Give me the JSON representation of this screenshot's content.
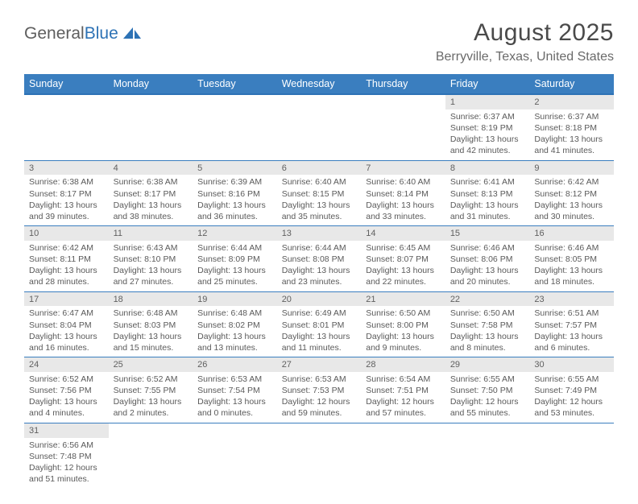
{
  "logo": {
    "text1": "General",
    "text2": "Blue"
  },
  "title": {
    "month": "August 2025",
    "location": "Berryville, Texas, United States"
  },
  "colors": {
    "header_bg": "#3a7ebf",
    "header_border": "#2d72b5",
    "daynum_bg": "#e8e8e8",
    "row_border": "#3a7ebf",
    "text": "#5a5a5a",
    "logo_gray": "#5e5e5e",
    "logo_blue": "#2d72b5"
  },
  "weekdays": [
    "Sunday",
    "Monday",
    "Tuesday",
    "Wednesday",
    "Thursday",
    "Friday",
    "Saturday"
  ],
  "weeks": [
    [
      null,
      null,
      null,
      null,
      null,
      {
        "n": "1",
        "sunrise": "6:37 AM",
        "sunset": "8:19 PM",
        "day_h": "13",
        "day_m": "42"
      },
      {
        "n": "2",
        "sunrise": "6:37 AM",
        "sunset": "8:18 PM",
        "day_h": "13",
        "day_m": "41"
      }
    ],
    [
      {
        "n": "3",
        "sunrise": "6:38 AM",
        "sunset": "8:17 PM",
        "day_h": "13",
        "day_m": "39"
      },
      {
        "n": "4",
        "sunrise": "6:38 AM",
        "sunset": "8:17 PM",
        "day_h": "13",
        "day_m": "38"
      },
      {
        "n": "5",
        "sunrise": "6:39 AM",
        "sunset": "8:16 PM",
        "day_h": "13",
        "day_m": "36"
      },
      {
        "n": "6",
        "sunrise": "6:40 AM",
        "sunset": "8:15 PM",
        "day_h": "13",
        "day_m": "35"
      },
      {
        "n": "7",
        "sunrise": "6:40 AM",
        "sunset": "8:14 PM",
        "day_h": "13",
        "day_m": "33"
      },
      {
        "n": "8",
        "sunrise": "6:41 AM",
        "sunset": "8:13 PM",
        "day_h": "13",
        "day_m": "31"
      },
      {
        "n": "9",
        "sunrise": "6:42 AM",
        "sunset": "8:12 PM",
        "day_h": "13",
        "day_m": "30"
      }
    ],
    [
      {
        "n": "10",
        "sunrise": "6:42 AM",
        "sunset": "8:11 PM",
        "day_h": "13",
        "day_m": "28"
      },
      {
        "n": "11",
        "sunrise": "6:43 AM",
        "sunset": "8:10 PM",
        "day_h": "13",
        "day_m": "27"
      },
      {
        "n": "12",
        "sunrise": "6:44 AM",
        "sunset": "8:09 PM",
        "day_h": "13",
        "day_m": "25"
      },
      {
        "n": "13",
        "sunrise": "6:44 AM",
        "sunset": "8:08 PM",
        "day_h": "13",
        "day_m": "23"
      },
      {
        "n": "14",
        "sunrise": "6:45 AM",
        "sunset": "8:07 PM",
        "day_h": "13",
        "day_m": "22"
      },
      {
        "n": "15",
        "sunrise": "6:46 AM",
        "sunset": "8:06 PM",
        "day_h": "13",
        "day_m": "20"
      },
      {
        "n": "16",
        "sunrise": "6:46 AM",
        "sunset": "8:05 PM",
        "day_h": "13",
        "day_m": "18"
      }
    ],
    [
      {
        "n": "17",
        "sunrise": "6:47 AM",
        "sunset": "8:04 PM",
        "day_h": "13",
        "day_m": "16"
      },
      {
        "n": "18",
        "sunrise": "6:48 AM",
        "sunset": "8:03 PM",
        "day_h": "13",
        "day_m": "15"
      },
      {
        "n": "19",
        "sunrise": "6:48 AM",
        "sunset": "8:02 PM",
        "day_h": "13",
        "day_m": "13"
      },
      {
        "n": "20",
        "sunrise": "6:49 AM",
        "sunset": "8:01 PM",
        "day_h": "13",
        "day_m": "11"
      },
      {
        "n": "21",
        "sunrise": "6:50 AM",
        "sunset": "8:00 PM",
        "day_h": "13",
        "day_m": "9"
      },
      {
        "n": "22",
        "sunrise": "6:50 AM",
        "sunset": "7:58 PM",
        "day_h": "13",
        "day_m": "8"
      },
      {
        "n": "23",
        "sunrise": "6:51 AM",
        "sunset": "7:57 PM",
        "day_h": "13",
        "day_m": "6"
      }
    ],
    [
      {
        "n": "24",
        "sunrise": "6:52 AM",
        "sunset": "7:56 PM",
        "day_h": "13",
        "day_m": "4"
      },
      {
        "n": "25",
        "sunrise": "6:52 AM",
        "sunset": "7:55 PM",
        "day_h": "13",
        "day_m": "2"
      },
      {
        "n": "26",
        "sunrise": "6:53 AM",
        "sunset": "7:54 PM",
        "day_h": "13",
        "day_m": "0"
      },
      {
        "n": "27",
        "sunrise": "6:53 AM",
        "sunset": "7:53 PM",
        "day_h": "12",
        "day_m": "59"
      },
      {
        "n": "28",
        "sunrise": "6:54 AM",
        "sunset": "7:51 PM",
        "day_h": "12",
        "day_m": "57"
      },
      {
        "n": "29",
        "sunrise": "6:55 AM",
        "sunset": "7:50 PM",
        "day_h": "12",
        "day_m": "55"
      },
      {
        "n": "30",
        "sunrise": "6:55 AM",
        "sunset": "7:49 PM",
        "day_h": "12",
        "day_m": "53"
      }
    ],
    [
      {
        "n": "31",
        "sunrise": "6:56 AM",
        "sunset": "7:48 PM",
        "day_h": "12",
        "day_m": "51"
      },
      null,
      null,
      null,
      null,
      null,
      null
    ]
  ]
}
